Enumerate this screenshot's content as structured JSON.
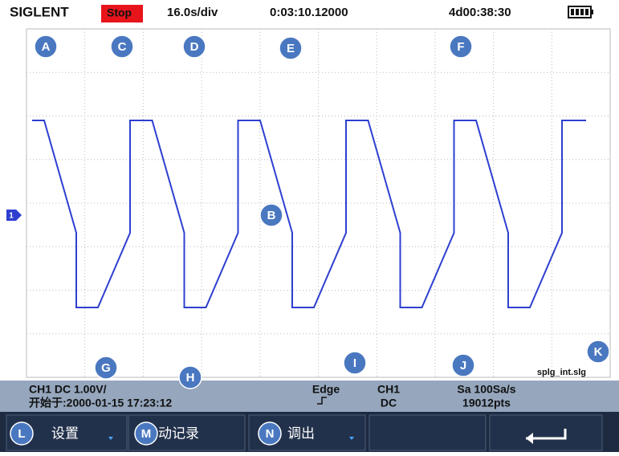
{
  "header": {
    "brand": "SIGLENT",
    "status": "Stop",
    "timebase": "16.0s/div",
    "elapsed": "0:03:10.12000",
    "clock": "4d00:38:30"
  },
  "channel_marker": "1",
  "callouts": [
    "A",
    "B",
    "C",
    "D",
    "E",
    "F",
    "G",
    "H",
    "I",
    "J",
    "K",
    "L",
    "M",
    "N"
  ],
  "info": {
    "channel": "CH1 DC 1.00V/",
    "start_time": "开始于:2000-01-15 17:23:12",
    "trigger_type": "Edge",
    "trigger_source": "CH1",
    "trigger_coupling": "DC",
    "sample_rate": "Sa 100Sa/s",
    "points": "19012pts",
    "filename": "splg_int.slg"
  },
  "menu": [
    "设置",
    "自动记录",
    "调出"
  ]
}
